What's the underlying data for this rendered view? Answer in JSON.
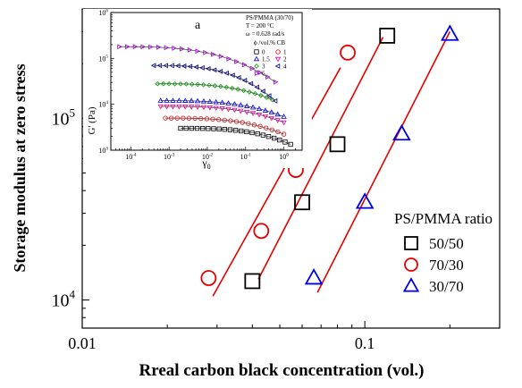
{
  "chart_data": [
    {
      "type": "scatter",
      "xlabel": "Rreal carbon black concentration (vol.)",
      "ylabel": "Storage modulus at zero stress",
      "xscale": "log",
      "yscale": "log",
      "xlim": [
        0.01,
        0.3
      ],
      "ylim": [
        7000,
        400000
      ],
      "x_ticks": [
        {
          "value": 0.01,
          "label": "0.01"
        },
        {
          "value": 0.1,
          "label": "0.1"
        }
      ],
      "y_ticks": [
        {
          "value": 10000,
          "base": "10",
          "exp": "4"
        },
        {
          "value": 100000,
          "base": "10",
          "exp": "5"
        }
      ],
      "legend": {
        "title": "PS/PMMA ratio",
        "placement": "bottom-right"
      },
      "series": [
        {
          "name": "50/50",
          "marker": "square",
          "color": "#000000",
          "x": [
            0.04,
            0.06,
            0.08,
            0.12
          ],
          "y": [
            12700,
            34500,
            72000,
            285000
          ],
          "fit_line": [
            [
              0.042,
              13000
            ],
            [
              0.116,
              280000
            ]
          ]
        },
        {
          "name": "70/30",
          "marker": "circle",
          "color": "#e60000",
          "x": [
            0.028,
            0.043,
            0.057,
            0.087
          ],
          "y": [
            13200,
            24000,
            52000,
            230000
          ],
          "fit_line": [
            [
              0.029,
              10500
            ],
            [
              0.082,
              190000
            ]
          ]
        },
        {
          "name": "30/70",
          "marker": "triangle",
          "color": "#0000e6",
          "x": [
            0.066,
            0.1,
            0.135,
            0.2
          ],
          "y": [
            13200,
            34500,
            82000,
            290000
          ],
          "fit_line": [
            [
              0.068,
              11000
            ],
            [
              0.2,
              300000
            ]
          ]
        }
      ]
    },
    {
      "type": "scatter",
      "panel_label": "a",
      "xlabel_base": "γ",
      "xlabel_sub": "0",
      "ylabel": "G' (Pa)",
      "xscale": "log",
      "yscale": "log",
      "xlim": [
        3e-05,
        3
      ],
      "ylim": [
        1000,
        1000000
      ],
      "x_ticks": [
        {
          "value": 0.0001,
          "exp": "-4"
        },
        {
          "value": 0.001,
          "exp": "-3"
        },
        {
          "value": 0.01,
          "exp": "-2"
        },
        {
          "value": 0.1,
          "exp": "-1"
        },
        {
          "value": 1,
          "exp": "0"
        }
      ],
      "y_ticks": [
        {
          "value": 1000,
          "exp": "3"
        },
        {
          "value": 10000,
          "exp": "4"
        },
        {
          "value": 100000,
          "exp": "5"
        },
        {
          "value": 1000000,
          "exp": "6"
        }
      ],
      "tick_base": "10",
      "annotation_lines": [
        "PS/PMMA (30/70)",
        "T = 200 °C",
        "ω = 0.628 rad/s"
      ],
      "legend_title": "ϕ /vol.% CB",
      "series": [
        {
          "name": "0",
          "marker": "square",
          "color": "#000000",
          "x_start": 0.002,
          "x_end": 1.5,
          "plateau": 3000
        },
        {
          "name": "1",
          "marker": "circle",
          "color": "#e60000",
          "x_start": 0.0008,
          "x_end": 1.0,
          "plateau": 5000
        },
        {
          "name": "1.5",
          "marker": "triangle",
          "color": "#0000e6",
          "x_start": 0.0006,
          "x_end": 1.0,
          "plateau": 12000
        },
        {
          "name": "2",
          "marker": "nabla",
          "color": "#e600a0",
          "x_start": 0.0006,
          "x_end": 1.0,
          "plateau": 9000
        },
        {
          "name": "3",
          "marker": "diamond",
          "color": "#00a000",
          "x_start": 0.0005,
          "x_end": 0.5,
          "plateau": 28000
        },
        {
          "name": "4",
          "marker": "left-triangle",
          "color": "#000080",
          "x_start": 0.0004,
          "x_end": 0.6,
          "plateau": 70000
        },
        {
          "name": "6",
          "marker": "right-triangle",
          "color": "#a000d0",
          "x_start": 5e-05,
          "x_end": 0.6,
          "plateau": 180000
        }
      ]
    }
  ]
}
